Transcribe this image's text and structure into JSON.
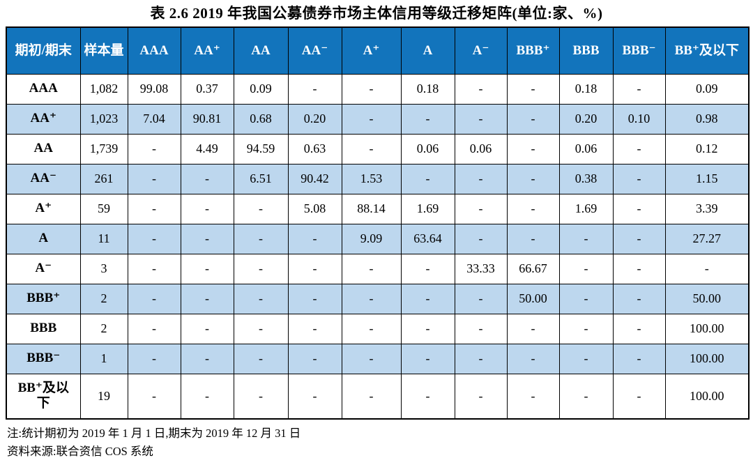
{
  "title": "表 2.6  2019 年我国公募债券市场主体信用等级迁移矩阵(单位:家、%)",
  "table": {
    "columns": [
      "期初/期末",
      "样本量",
      "AAA",
      "AA⁺",
      "AA",
      "AA⁻",
      "A⁺",
      "A",
      "A⁻",
      "BBB⁺",
      "BBB",
      "BBB⁻",
      "BB⁺及以下"
    ],
    "rows": [
      {
        "rating": "AAA",
        "sample": "1,082",
        "cells": [
          "99.08",
          "0.37",
          "0.09",
          "-",
          "-",
          "0.18",
          "-",
          "-",
          "0.18",
          "-",
          "0.09"
        ]
      },
      {
        "rating": "AA⁺",
        "sample": "1,023",
        "cells": [
          "7.04",
          "90.81",
          "0.68",
          "0.20",
          "-",
          "-",
          "-",
          "-",
          "0.20",
          "0.10",
          "0.98"
        ]
      },
      {
        "rating": "AA",
        "sample": "1,739",
        "cells": [
          "-",
          "4.49",
          "94.59",
          "0.63",
          "-",
          "0.06",
          "0.06",
          "-",
          "0.06",
          "-",
          "0.12"
        ]
      },
      {
        "rating": "AA⁻",
        "sample": "261",
        "cells": [
          "-",
          "-",
          "6.51",
          "90.42",
          "1.53",
          "-",
          "-",
          "-",
          "0.38",
          "-",
          "1.15"
        ]
      },
      {
        "rating": "A⁺",
        "sample": "59",
        "cells": [
          "-",
          "-",
          "-",
          "5.08",
          "88.14",
          "1.69",
          "-",
          "-",
          "1.69",
          "-",
          "3.39"
        ]
      },
      {
        "rating": "A",
        "sample": "11",
        "cells": [
          "-",
          "-",
          "-",
          "-",
          "9.09",
          "63.64",
          "-",
          "-",
          "-",
          "-",
          "27.27"
        ]
      },
      {
        "rating": "A⁻",
        "sample": "3",
        "cells": [
          "-",
          "-",
          "-",
          "-",
          "-",
          "-",
          "33.33",
          "66.67",
          "-",
          "-",
          "-"
        ]
      },
      {
        "rating": "BBB⁺",
        "sample": "2",
        "cells": [
          "-",
          "-",
          "-",
          "-",
          "-",
          "-",
          "-",
          "50.00",
          "-",
          "-",
          "50.00"
        ]
      },
      {
        "rating": "BBB",
        "sample": "2",
        "cells": [
          "-",
          "-",
          "-",
          "-",
          "-",
          "-",
          "-",
          "-",
          "-",
          "-",
          "100.00"
        ]
      },
      {
        "rating": "BBB⁻",
        "sample": "1",
        "cells": [
          "-",
          "-",
          "-",
          "-",
          "-",
          "-",
          "-",
          "-",
          "-",
          "-",
          "100.00"
        ]
      },
      {
        "rating": "BB⁺及以下",
        "sample": "19",
        "cells": [
          "-",
          "-",
          "-",
          "-",
          "-",
          "-",
          "-",
          "-",
          "-",
          "-",
          "100.00"
        ]
      }
    ]
  },
  "notes": [
    "注:统计期初为 2019 年 1 月 1 日,期末为 2019 年 12 月 31 日",
    "资料来源:联合资信 COS 系统"
  ],
  "colors": {
    "header_bg": "#1274BC",
    "header_text": "#FFFFFF",
    "stripe_bg": "#BDD7EE",
    "border": "#000000"
  }
}
